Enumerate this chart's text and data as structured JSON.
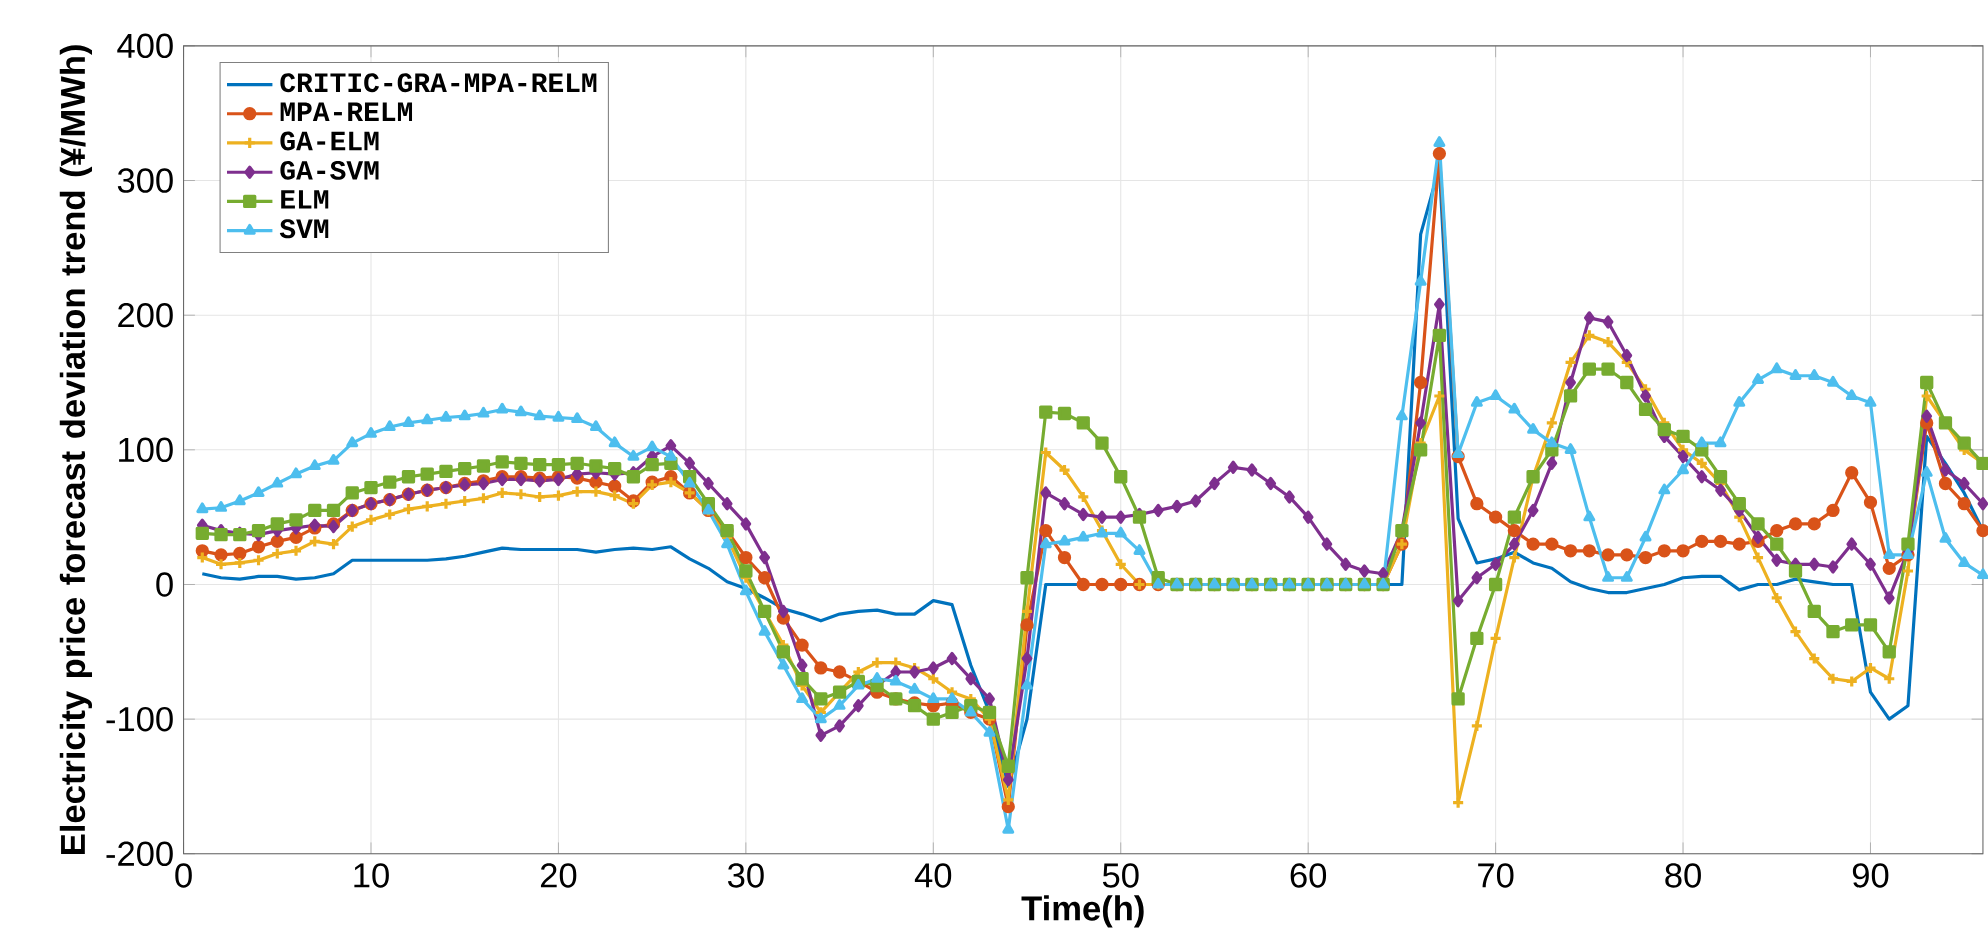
{
  "chart_data": {
    "type": "line",
    "xlabel": "Time(h)",
    "ylabel": "Electricity price forecast deviation trend (¥/MWh)",
    "x": [
      1,
      2,
      3,
      4,
      5,
      6,
      7,
      8,
      9,
      10,
      11,
      12,
      13,
      14,
      15,
      16,
      17,
      18,
      19,
      20,
      21,
      22,
      23,
      24,
      25,
      26,
      27,
      28,
      29,
      30,
      31,
      32,
      33,
      34,
      35,
      36,
      37,
      38,
      39,
      40,
      41,
      42,
      43,
      44,
      45,
      46,
      47,
      48,
      49,
      50,
      51,
      52,
      53,
      54,
      55,
      56,
      57,
      58,
      59,
      60,
      61,
      62,
      63,
      64,
      65,
      66,
      67,
      68,
      69,
      70,
      71,
      72,
      73,
      74,
      75,
      76,
      77,
      78,
      79,
      80,
      81,
      82,
      83,
      84,
      85,
      86,
      87,
      88,
      89,
      90,
      91,
      92,
      93,
      94,
      95,
      96
    ],
    "xlim": [
      0,
      96
    ],
    "ylim": [
      -200,
      400
    ],
    "xticks": [
      0,
      10,
      20,
      30,
      40,
      50,
      60,
      70,
      80,
      90
    ],
    "yticks": [
      -200,
      -100,
      0,
      100,
      200,
      300,
      400
    ],
    "grid": true,
    "legend": "top left",
    "line_style": "solid",
    "series": [
      {
        "name": "CRITIC-GRA-MPA-RELM",
        "color": "#0072bd",
        "marker": "none",
        "values": [
          8,
          5,
          4,
          6,
          6,
          4,
          5,
          8,
          18,
          18,
          18,
          18,
          18,
          19,
          21,
          24,
          27,
          26,
          26,
          26,
          26,
          24,
          26,
          27,
          26,
          28,
          19,
          12,
          2,
          -3,
          -10,
          -18,
          -22,
          -27,
          -22,
          -20,
          -19,
          -22,
          -22,
          -12,
          -15,
          -60,
          -95,
          -150,
          -100,
          0,
          0,
          0,
          0,
          0,
          0,
          0,
          0,
          0,
          0,
          0,
          0,
          0,
          0,
          0,
          0,
          0,
          0,
          0,
          0,
          260,
          310,
          49,
          16,
          19,
          24,
          16,
          12,
          2,
          -3,
          -6,
          -6,
          -3,
          0,
          5,
          6,
          6,
          -4,
          0,
          0,
          4,
          2,
          0,
          0,
          -80,
          -100,
          -90,
          110,
          90,
          68,
          40
        ]
      },
      {
        "name": "MPA-RELM",
        "color": "#d95319",
        "marker": "circle",
        "values": [
          25,
          22,
          23,
          28,
          32,
          35,
          42,
          45,
          55,
          60,
          63,
          67,
          70,
          72,
          75,
          77,
          80,
          80,
          79,
          80,
          79,
          76,
          73,
          62,
          76,
          80,
          68,
          55,
          40,
          20,
          5,
          -25,
          -45,
          -62,
          -65,
          -72,
          -80,
          -85,
          -88,
          -90,
          -88,
          -95,
          -100,
          -165,
          -30,
          40,
          20,
          0,
          0,
          0,
          0,
          0,
          0,
          0,
          0,
          0,
          0,
          0,
          0,
          0,
          0,
          0,
          0,
          0,
          30,
          150,
          320,
          95,
          60,
          50,
          40,
          30,
          30,
          25,
          25,
          22,
          22,
          20,
          25,
          25,
          32,
          32,
          30,
          32,
          40,
          45,
          45,
          55,
          83,
          61,
          12,
          22,
          120,
          75,
          60,
          40
        ]
      },
      {
        "name": "GA-ELM",
        "color": "#edb120",
        "marker": "cross",
        "values": [
          20,
          15,
          16,
          18,
          23,
          25,
          32,
          30,
          43,
          48,
          52,
          56,
          58,
          60,
          62,
          64,
          68,
          67,
          65,
          66,
          69,
          69,
          66,
          60,
          74,
          76,
          68,
          55,
          35,
          5,
          -20,
          -45,
          -75,
          -95,
          -80,
          -65,
          -58,
          -58,
          -62,
          -70,
          -80,
          -85,
          -100,
          -160,
          -20,
          98,
          85,
          65,
          40,
          15,
          0,
          0,
          0,
          0,
          0,
          0,
          0,
          0,
          0,
          0,
          0,
          0,
          0,
          0,
          30,
          105,
          140,
          -162,
          -105,
          -40,
          20,
          80,
          120,
          165,
          185,
          180,
          165,
          145,
          120,
          100,
          90,
          75,
          50,
          20,
          -10,
          -35,
          -55,
          -70,
          -72,
          -62,
          -70,
          10,
          140,
          120,
          100,
          90
        ]
      },
      {
        "name": "GA-SVM",
        "color": "#7e2f8e",
        "marker": "diamond",
        "values": [
          44,
          40,
          38,
          37,
          40,
          42,
          44,
          43,
          55,
          60,
          63,
          67,
          70,
          72,
          74,
          75,
          78,
          78,
          77,
          78,
          82,
          83,
          82,
          83,
          95,
          103,
          90,
          75,
          60,
          45,
          20,
          -20,
          -60,
          -112,
          -105,
          -90,
          -75,
          -65,
          -65,
          -62,
          -55,
          -70,
          -85,
          -145,
          -55,
          68,
          60,
          52,
          50,
          50,
          52,
          55,
          58,
          62,
          75,
          87,
          85,
          75,
          65,
          50,
          30,
          15,
          10,
          8,
          40,
          120,
          208,
          -12,
          5,
          15,
          30,
          55,
          90,
          150,
          198,
          195,
          170,
          140,
          110,
          95,
          80,
          70,
          55,
          35,
          18,
          15,
          15,
          13,
          30,
          15,
          -10,
          25,
          125,
          85,
          75,
          60
        ]
      },
      {
        "name": "ELM",
        "color": "#77ac30",
        "marker": "square",
        "values": [
          38,
          37,
          37,
          40,
          45,
          48,
          55,
          55,
          68,
          72,
          76,
          80,
          82,
          84,
          86,
          88,
          91,
          90,
          89,
          89,
          90,
          88,
          86,
          80,
          89,
          90,
          80,
          60,
          40,
          10,
          -20,
          -50,
          -70,
          -85,
          -80,
          -72,
          -75,
          -85,
          -90,
          -100,
          -95,
          -90,
          -95,
          -135,
          5,
          128,
          127,
          120,
          105,
          80,
          50,
          5,
          0,
          0,
          0,
          0,
          0,
          0,
          0,
          0,
          0,
          0,
          0,
          0,
          40,
          100,
          185,
          -85,
          -40,
          0,
          50,
          80,
          100,
          140,
          160,
          160,
          150,
          130,
          115,
          110,
          100,
          80,
          60,
          45,
          30,
          10,
          -20,
          -35,
          -30,
          -30,
          -50,
          30,
          150,
          120,
          105,
          90
        ]
      },
      {
        "name": "SVM",
        "color": "#4dbeee",
        "marker": "triangle",
        "values": [
          56,
          57,
          62,
          68,
          75,
          82,
          88,
          92,
          105,
          112,
          117,
          120,
          122,
          124,
          125,
          127,
          130,
          128,
          125,
          124,
          123,
          117,
          105,
          95,
          102,
          95,
          75,
          55,
          30,
          -5,
          -35,
          -60,
          -85,
          -100,
          -90,
          -75,
          -70,
          -72,
          -78,
          -85,
          -85,
          -95,
          -110,
          -182,
          -75,
          30,
          32,
          35,
          38,
          38,
          25,
          0,
          0,
          0,
          0,
          0,
          0,
          0,
          0,
          0,
          0,
          0,
          0,
          0,
          125,
          225,
          328,
          97,
          135,
          140,
          130,
          115,
          105,
          100,
          50,
          5,
          5,
          35,
          70,
          85,
          105,
          105,
          135,
          152,
          160,
          155,
          155,
          150,
          140,
          135,
          22,
          22,
          83,
          34,
          16,
          7
        ]
      }
    ]
  }
}
